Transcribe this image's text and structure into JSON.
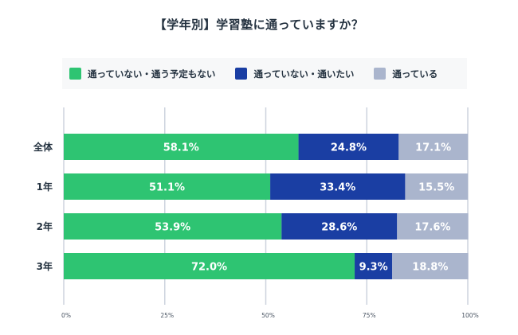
{
  "chart_data": {
    "type": "bar",
    "orientation": "horizontal",
    "stacked": true,
    "title": "【学年別】学習塾に通っていますか？",
    "categories": [
      "全体",
      "1年",
      "2年",
      "3年"
    ],
    "series": [
      {
        "name": "通っていない・通う予定もない",
        "color": "#2ec472",
        "values": [
          58.1,
          51.1,
          53.9,
          72.0
        ],
        "labels": [
          "58.1%",
          "51.1%",
          "53.9%",
          "72.0%"
        ]
      },
      {
        "name": "通っていない・通いたい",
        "color": "#1a3ea3",
        "values": [
          24.8,
          33.4,
          28.6,
          9.3
        ],
        "labels": [
          "24.8%",
          "33.4%",
          "28.6%",
          "9.3%"
        ]
      },
      {
        "name": "通っている",
        "color": "#aab5cd",
        "values": [
          17.1,
          15.5,
          17.6,
          18.8
        ],
        "labels": [
          "17.1%",
          "15.5%",
          "17.6%",
          "18.8%"
        ]
      }
    ],
    "xlim": [
      0,
      100
    ],
    "xticks": [
      0,
      25,
      50,
      75,
      100
    ],
    "xtick_labels": [
      "0%",
      "25%",
      "50%",
      "75%",
      "100%"
    ],
    "xlabel": "",
    "ylabel": "",
    "grid": true,
    "legend_position": "top"
  }
}
